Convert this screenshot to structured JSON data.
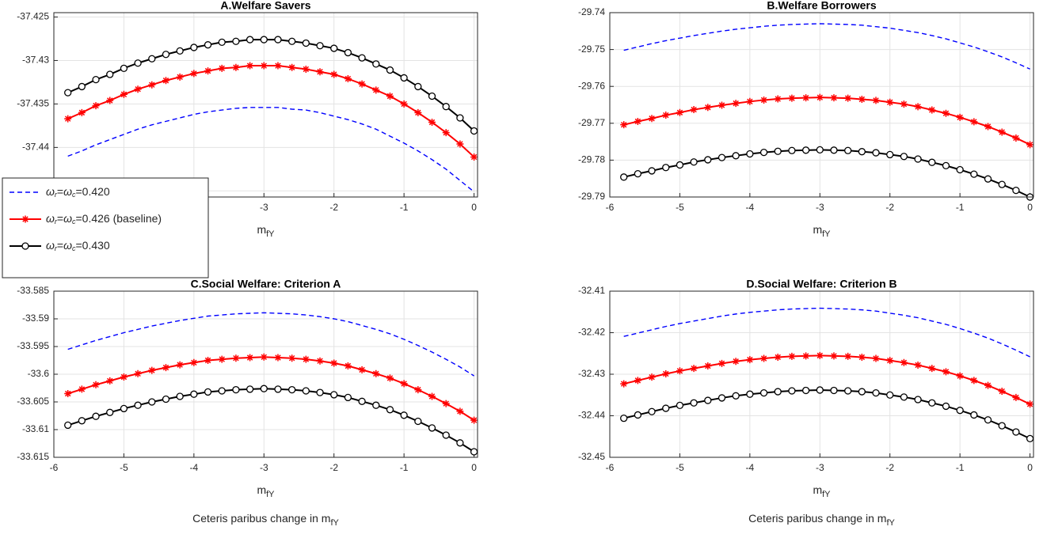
{
  "chart_data": [
    {
      "type": "line",
      "title": "A.Welfare Savers",
      "xlabel": "mfY",
      "x": [
        -5.8,
        -5.6,
        -5.4,
        -5.2,
        -5.0,
        -4.8,
        -4.6,
        -4.4,
        -4.2,
        -4.0,
        -3.8,
        -3.6,
        -3.4,
        -3.2,
        -3.0,
        -2.8,
        -2.6,
        -2.4,
        -2.2,
        -2.0,
        -1.8,
        -1.6,
        -1.4,
        -1.2,
        -1.0,
        -0.8,
        -0.6,
        -0.4,
        -0.2,
        0
      ],
      "xlim": [
        -6,
        0.05
      ],
      "xticks": [
        -6,
        -5,
        -4,
        -3,
        -2,
        -1,
        0
      ],
      "ylim": [
        -37.4457,
        -37.4245
      ],
      "yticks": [
        -37.425,
        -37.43,
        -37.435,
        -37.44,
        -37.445
      ],
      "grid": true,
      "legend": "west",
      "series": [
        {
          "name": "ωr=ωc=0.420",
          "color": "#0000ff",
          "linestyle": "dashed",
          "marker": "none",
          "values": [
            -37.441,
            -37.4404,
            -37.4397,
            -37.4391,
            -37.4385,
            -37.4379,
            -37.4374,
            -37.437,
            -37.4366,
            -37.4362,
            -37.4359,
            -37.4357,
            -37.4355,
            -37.4354,
            -37.4354,
            -37.4354,
            -37.4356,
            -37.4357,
            -37.436,
            -37.4364,
            -37.4368,
            -37.4373,
            -37.4379,
            -37.4387,
            -37.4395,
            -37.4404,
            -37.4414,
            -37.4425,
            -37.4438,
            -37.4451
          ]
        },
        {
          "name": "ωr=ωc=0.426 (baseline)",
          "color": "#ff0000",
          "linestyle": "solid",
          "marker": "asterisk",
          "values": [
            -37.4367,
            -37.436,
            -37.4352,
            -37.4346,
            -37.4339,
            -37.4333,
            -37.4328,
            -37.4323,
            -37.4319,
            -37.4315,
            -37.4312,
            -37.4309,
            -37.4308,
            -37.4306,
            -37.4306,
            -37.4306,
            -37.4308,
            -37.431,
            -37.4313,
            -37.4316,
            -37.4321,
            -37.4327,
            -37.4334,
            -37.4341,
            -37.435,
            -37.436,
            -37.4371,
            -37.4383,
            -37.4396,
            -37.4411
          ]
        },
        {
          "name": "ωr=ωc=0.430",
          "color": "#000000",
          "linestyle": "solid",
          "marker": "circle",
          "values": [
            -37.4337,
            -37.433,
            -37.4322,
            -37.4316,
            -37.4309,
            -37.4303,
            -37.4298,
            -37.4293,
            -37.4289,
            -37.4285,
            -37.4282,
            -37.4279,
            -37.4278,
            -37.4276,
            -37.4276,
            -37.4276,
            -37.4278,
            -37.428,
            -37.4283,
            -37.4286,
            -37.4291,
            -37.4297,
            -37.4304,
            -37.4311,
            -37.432,
            -37.433,
            -37.4341,
            -37.4353,
            -37.4366,
            -37.4381
          ]
        }
      ]
    },
    {
      "type": "line",
      "title": "B.Welfare Borrowers",
      "xlabel": "mfY",
      "x": [
        -5.8,
        -5.6,
        -5.4,
        -5.2,
        -5.0,
        -4.8,
        -4.6,
        -4.4,
        -4.2,
        -4.0,
        -3.8,
        -3.6,
        -3.4,
        -3.2,
        -3.0,
        -2.8,
        -2.6,
        -2.4,
        -2.2,
        -2.0,
        -1.8,
        -1.6,
        -1.4,
        -1.2,
        -1.0,
        -0.8,
        -0.6,
        -0.4,
        -0.2,
        0
      ],
      "xlim": [
        -6,
        0.05
      ],
      "xticks": [
        -6,
        -5,
        -4,
        -3,
        -2,
        -1,
        0
      ],
      "ylim": [
        -29.79,
        -29.74
      ],
      "yticks": [
        -29.74,
        -29.75,
        -29.76,
        -29.77,
        -29.78,
        -29.79
      ],
      "grid": true,
      "series": [
        {
          "color": "#0000ff",
          "linestyle": "dashed",
          "marker": "none",
          "values": [
            -29.7502,
            -29.7493,
            -29.7484,
            -29.7476,
            -29.7469,
            -29.7462,
            -29.7456,
            -29.745,
            -29.7445,
            -29.7441,
            -29.7437,
            -29.7434,
            -29.7432,
            -29.7431,
            -29.743,
            -29.7431,
            -29.7432,
            -29.7434,
            -29.7438,
            -29.7442,
            -29.7448,
            -29.7454,
            -29.7462,
            -29.7471,
            -29.7482,
            -29.7493,
            -29.7506,
            -29.752,
            -29.7536,
            -29.7553
          ]
        },
        {
          "color": "#ff0000",
          "linestyle": "solid",
          "marker": "asterisk",
          "values": [
            -29.7704,
            -29.7695,
            -29.7687,
            -29.7678,
            -29.7671,
            -29.7663,
            -29.7657,
            -29.7651,
            -29.7646,
            -29.7641,
            -29.7637,
            -29.7634,
            -29.7632,
            -29.7631,
            -29.763,
            -29.7631,
            -29.7632,
            -29.7635,
            -29.7638,
            -29.7643,
            -29.7648,
            -29.7655,
            -29.7664,
            -29.7673,
            -29.7684,
            -29.7696,
            -29.7709,
            -29.7724,
            -29.774,
            -29.7758
          ]
        },
        {
          "color": "#000000",
          "linestyle": "solid",
          "marker": "circle",
          "values": [
            -29.7846,
            -29.7837,
            -29.7829,
            -29.782,
            -29.7813,
            -29.7805,
            -29.7799,
            -29.7793,
            -29.7788,
            -29.7783,
            -29.7779,
            -29.7776,
            -29.7774,
            -29.7773,
            -29.7772,
            -29.7773,
            -29.7774,
            -29.7777,
            -29.778,
            -29.7785,
            -29.779,
            -29.7797,
            -29.7806,
            -29.7815,
            -29.7826,
            -29.7838,
            -29.7851,
            -29.7866,
            -29.7882,
            -29.79
          ]
        }
      ]
    },
    {
      "type": "line",
      "title": "C.Social Welfare: Criterion A",
      "xlabel": "mfY",
      "xlabel_note": "Ceteris paribus change in mfY",
      "x": [
        -5.8,
        -5.6,
        -5.4,
        -5.2,
        -5.0,
        -4.8,
        -4.6,
        -4.4,
        -4.2,
        -4.0,
        -3.8,
        -3.6,
        -3.4,
        -3.2,
        -3.0,
        -2.8,
        -2.6,
        -2.4,
        -2.2,
        -2.0,
        -1.8,
        -1.6,
        -1.4,
        -1.2,
        -1.0,
        -0.8,
        -0.6,
        -0.4,
        -0.2,
        0
      ],
      "xlim": [
        -6,
        0.05
      ],
      "xticks": [
        -6,
        -5,
        -4,
        -3,
        -2,
        -1,
        0
      ],
      "ylim": [
        -33.615,
        -33.585
      ],
      "yticks": [
        -33.585,
        -33.59,
        -33.595,
        -33.6,
        -33.605,
        -33.61,
        -33.615
      ],
      "grid": true,
      "series": [
        {
          "color": "#0000ff",
          "linestyle": "dashed",
          "marker": "none",
          "values": [
            -33.5955,
            -33.5947,
            -33.5939,
            -33.5932,
            -33.5925,
            -33.5919,
            -33.5913,
            -33.5908,
            -33.5903,
            -33.5899,
            -33.5895,
            -33.5893,
            -33.5891,
            -33.589,
            -33.5889,
            -33.589,
            -33.5891,
            -33.5893,
            -33.5896,
            -33.59,
            -33.5905,
            -33.5912,
            -33.5919,
            -33.5927,
            -33.5937,
            -33.5948,
            -33.596,
            -33.5973,
            -33.5987,
            -33.6003
          ]
        },
        {
          "color": "#ff0000",
          "linestyle": "solid",
          "marker": "asterisk",
          "values": [
            -33.6035,
            -33.6027,
            -33.6019,
            -33.6012,
            -33.6005,
            -33.5999,
            -33.5993,
            -33.5988,
            -33.5983,
            -33.5979,
            -33.5975,
            -33.5973,
            -33.5971,
            -33.597,
            -33.5969,
            -33.597,
            -33.5971,
            -33.5973,
            -33.5976,
            -33.598,
            -33.5985,
            -33.5992,
            -33.5999,
            -33.6007,
            -33.6017,
            -33.6028,
            -33.604,
            -33.6053,
            -33.6067,
            -33.6083
          ]
        },
        {
          "color": "#000000",
          "linestyle": "solid",
          "marker": "circle",
          "values": [
            -33.6092,
            -33.6084,
            -33.6076,
            -33.6069,
            -33.6062,
            -33.6056,
            -33.605,
            -33.6045,
            -33.604,
            -33.6036,
            -33.6032,
            -33.603,
            -33.6028,
            -33.6027,
            -33.6026,
            -33.6027,
            -33.6028,
            -33.603,
            -33.6033,
            -33.6037,
            -33.6042,
            -33.6049,
            -33.6056,
            -33.6064,
            -33.6074,
            -33.6085,
            -33.6097,
            -33.611,
            -33.6124,
            -33.614
          ]
        }
      ]
    },
    {
      "type": "line",
      "title": "D.Social Welfare: Criterion B",
      "xlabel": "mfY",
      "xlabel_note": "Ceteris paribus change in mfY",
      "x": [
        -5.8,
        -5.6,
        -5.4,
        -5.2,
        -5.0,
        -4.8,
        -4.6,
        -4.4,
        -4.2,
        -4.0,
        -3.8,
        -3.6,
        -3.4,
        -3.2,
        -3.0,
        -2.8,
        -2.6,
        -2.4,
        -2.2,
        -2.0,
        -1.8,
        -1.6,
        -1.4,
        -1.2,
        -1.0,
        -0.8,
        -0.6,
        -0.4,
        -0.2,
        0
      ],
      "xlim": [
        -6,
        0.05
      ],
      "xticks": [
        -6,
        -5,
        -4,
        -3,
        -2,
        -1,
        0
      ],
      "ylim": [
        -32.45,
        -32.41
      ],
      "yticks": [
        -32.41,
        -32.42,
        -32.43,
        -32.44,
        -32.45
      ],
      "grid": true,
      "series": [
        {
          "color": "#0000ff",
          "linestyle": "dashed",
          "marker": "none",
          "values": [
            -32.4209,
            -32.4201,
            -32.4193,
            -32.4185,
            -32.4178,
            -32.4172,
            -32.4166,
            -32.416,
            -32.4155,
            -32.4151,
            -32.4148,
            -32.4145,
            -32.4143,
            -32.4142,
            -32.4141,
            -32.4142,
            -32.4143,
            -32.4145,
            -32.4148,
            -32.4153,
            -32.4158,
            -32.4164,
            -32.4172,
            -32.418,
            -32.419,
            -32.4201,
            -32.4213,
            -32.4227,
            -32.4242,
            -32.4258
          ]
        },
        {
          "color": "#ff0000",
          "linestyle": "solid",
          "marker": "asterisk",
          "values": [
            -32.4323,
            -32.4315,
            -32.4307,
            -32.4299,
            -32.4292,
            -32.4286,
            -32.428,
            -32.4274,
            -32.4269,
            -32.4265,
            -32.4262,
            -32.4259,
            -32.4257,
            -32.4256,
            -32.4255,
            -32.4256,
            -32.4257,
            -32.4259,
            -32.4262,
            -32.4267,
            -32.4272,
            -32.4278,
            -32.4286,
            -32.4294,
            -32.4304,
            -32.4315,
            -32.4327,
            -32.4341,
            -32.4356,
            -32.4372
          ]
        },
        {
          "color": "#000000",
          "linestyle": "solid",
          "marker": "circle",
          "values": [
            -32.4406,
            -32.4398,
            -32.439,
            -32.4382,
            -32.4375,
            -32.4369,
            -32.4363,
            -32.4357,
            -32.4352,
            -32.4348,
            -32.4345,
            -32.4342,
            -32.434,
            -32.4339,
            -32.4338,
            -32.4339,
            -32.434,
            -32.4342,
            -32.4345,
            -32.435,
            -32.4355,
            -32.4361,
            -32.4369,
            -32.4377,
            -32.4387,
            -32.4398,
            -32.441,
            -32.4424,
            -32.4439,
            -32.4455
          ]
        }
      ]
    }
  ]
}
